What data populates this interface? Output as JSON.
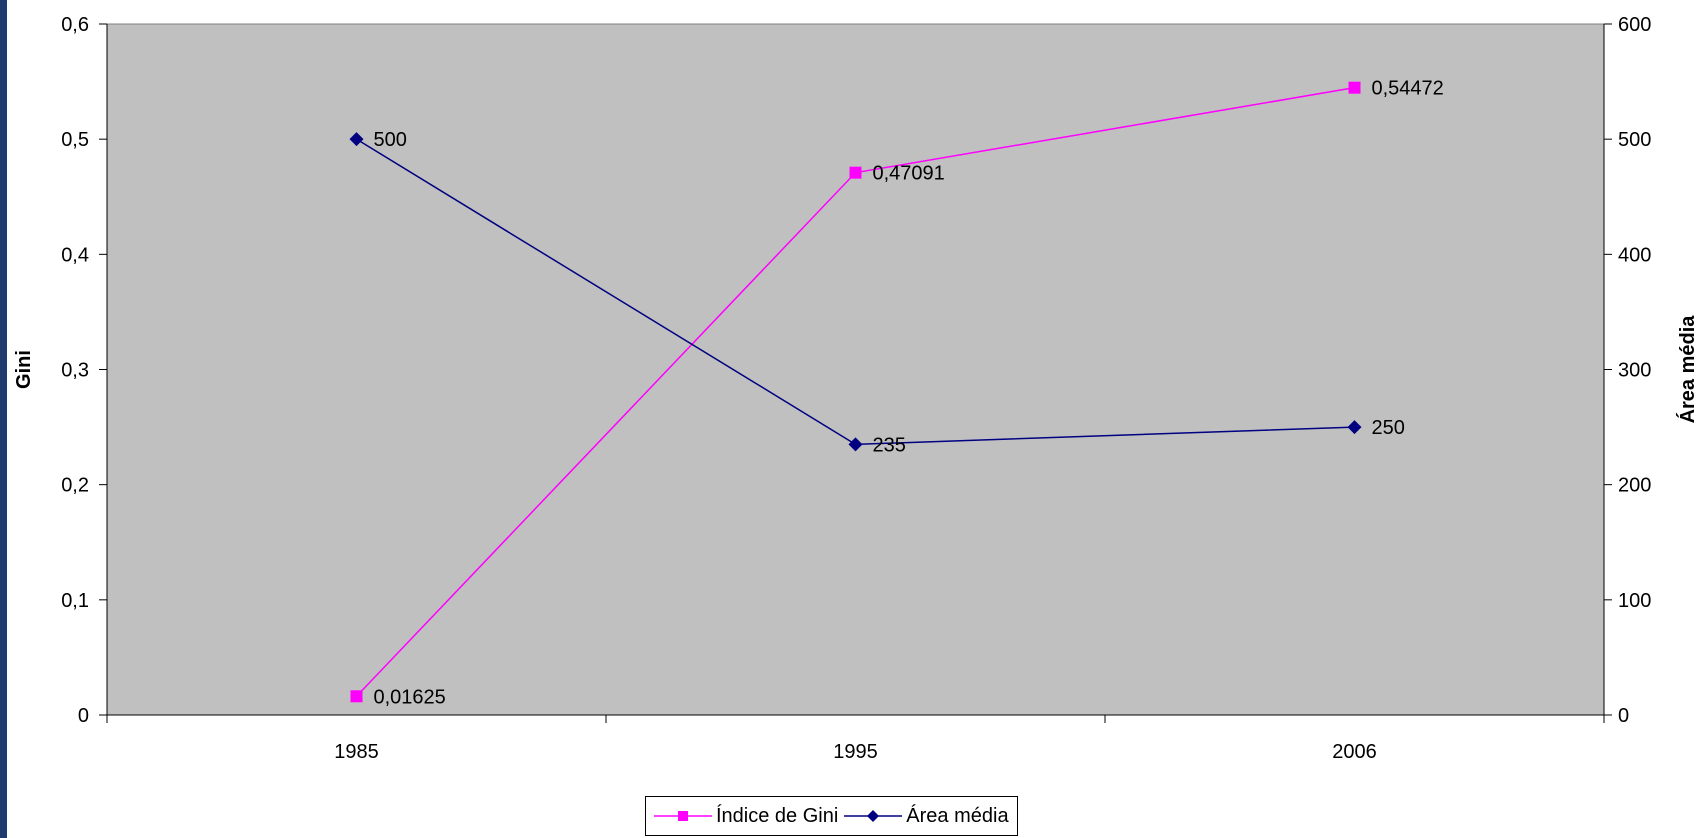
{
  "chart_data": {
    "type": "line",
    "categories": [
      "1985",
      "1995",
      "2006"
    ],
    "series": [
      {
        "name": "Índice de Gini",
        "axis": "left",
        "color": "#ff00ff",
        "marker": "square",
        "values": [
          0.01625,
          0.47091,
          0.54472
        ],
        "labels": [
          "0,01625",
          "0,47091",
          "0,54472"
        ]
      },
      {
        "name": "Área média",
        "axis": "right",
        "color": "#000080",
        "marker": "diamond",
        "values": [
          500,
          235,
          250
        ],
        "labels": [
          "500",
          "235",
          "250"
        ]
      }
    ],
    "ylabel": "Gini",
    "y2label": "Área média",
    "ylim": [
      0,
      0.6
    ],
    "y2lim": [
      0,
      600
    ],
    "yticks": [
      "0",
      "0,1",
      "0,2",
      "0,3",
      "0,4",
      "0,5",
      "0,6"
    ],
    "y2ticks": [
      "0",
      "100",
      "200",
      "300",
      "400",
      "500",
      "600"
    ],
    "plot_background": "#c0c0c0",
    "grid": false,
    "legend_position": "bottom"
  }
}
